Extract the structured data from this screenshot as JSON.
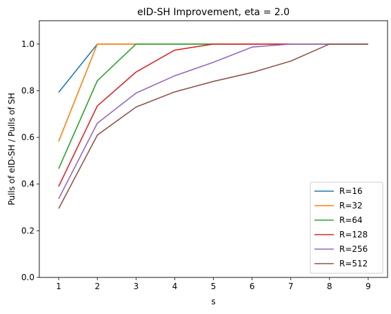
{
  "chart_data": {
    "type": "line",
    "title": "eID-SH Improvement, eta = 2.0",
    "xlabel": "s",
    "ylabel": "Pulls of eID-SH / Pulls of SH",
    "xlim": [
      0.5,
      9.5
    ],
    "ylim": [
      0.0,
      1.1
    ],
    "xticks": [
      1,
      2,
      3,
      4,
      5,
      6,
      7,
      8,
      9
    ],
    "yticks": [
      0.0,
      0.2,
      0.4,
      0.6,
      0.8,
      1.0
    ],
    "ytick_labels": [
      "0.0",
      "0.2",
      "0.4",
      "0.6",
      "0.8",
      "1.0"
    ],
    "grid": false,
    "legend_position": "lower-right",
    "series": [
      {
        "name": "R=16",
        "color": "#1f77b4",
        "x": [
          1,
          2,
          3,
          4,
          5,
          6,
          7,
          8,
          9
        ],
        "values": [
          0.793,
          1.0,
          1.0,
          1.0,
          1.0,
          1.0,
          1.0,
          1.0,
          1.0
        ]
      },
      {
        "name": "R=32",
        "color": "#ff7f0e",
        "x": [
          1,
          2,
          3,
          4,
          5,
          6,
          7,
          8,
          9
        ],
        "values": [
          0.583,
          1.0,
          1.0,
          1.0,
          1.0,
          1.0,
          1.0,
          1.0,
          1.0
        ]
      },
      {
        "name": "R=64",
        "color": "#2ca02c",
        "x": [
          1,
          2,
          3,
          4,
          5,
          6,
          7,
          8,
          9
        ],
        "values": [
          0.466,
          0.843,
          1.0,
          1.0,
          1.0,
          1.0,
          1.0,
          1.0,
          1.0
        ]
      },
      {
        "name": "R=128",
        "color": "#d62728",
        "x": [
          1,
          2,
          3,
          4,
          5,
          6,
          7,
          8,
          9
        ],
        "values": [
          0.39,
          0.735,
          0.88,
          0.974,
          1.0,
          1.0,
          1.0,
          1.0,
          1.0
        ]
      },
      {
        "name": "R=256",
        "color": "#9467bd",
        "x": [
          1,
          2,
          3,
          4,
          5,
          6,
          7,
          8,
          9
        ],
        "values": [
          0.337,
          0.661,
          0.79,
          0.864,
          0.922,
          0.987,
          1.0,
          1.0,
          1.0
        ]
      },
      {
        "name": "R=512",
        "color": "#8c564b",
        "x": [
          1,
          2,
          3,
          4,
          5,
          6,
          7,
          8,
          9
        ],
        "values": [
          0.295,
          0.61,
          0.73,
          0.795,
          0.84,
          0.878,
          0.927,
          1.0,
          1.0
        ]
      }
    ]
  }
}
